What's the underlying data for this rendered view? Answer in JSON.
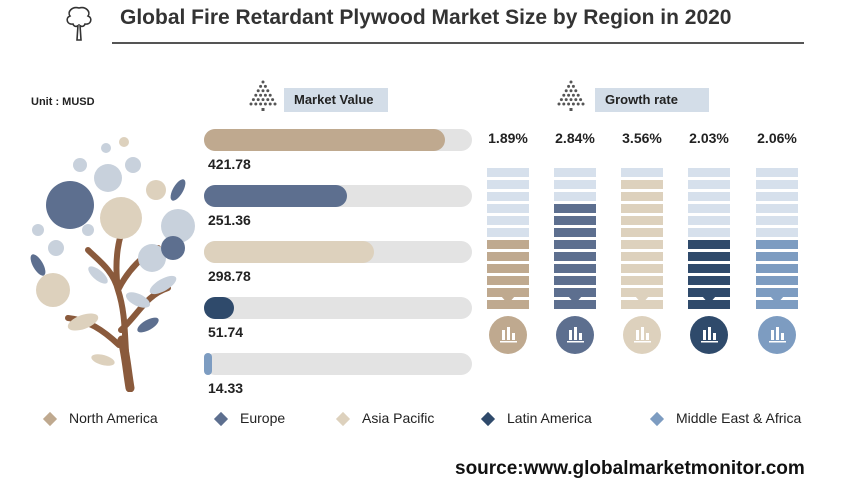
{
  "title": "Global Fire Retardant Plywood Market Size by Region in 2020",
  "unit_label": "Unit : MUSD",
  "market_value_label": "Market Value",
  "growth_rate_label": "Growth rate",
  "source": "source:www.globalmarketmonitor.com",
  "icons": {
    "logo": "tree-icon",
    "market_value": "pyramid-icon",
    "growth_rate": "pyramid-icon",
    "bar_chart": "bar-chart-icon",
    "decor": "tree-illustration"
  },
  "colors": {
    "North America": "#bfa98f",
    "Europe": "#5d6f8f",
    "Asia Pacific": "#ddd1bd",
    "Latin America": "#2f4a6b",
    "Middle East & Africa": "#7d9cc1",
    "track": "#e3e3e3",
    "segment_empty": "#d6e0ec",
    "chip_bg": "#d3dde8"
  },
  "chart_data": [
    {
      "type": "bar",
      "title": "Market Value",
      "categories": [
        "North America",
        "Europe",
        "Asia Pacific",
        "Latin America",
        "Middle East & Africa"
      ],
      "values": [
        421.78,
        251.36,
        298.78,
        51.74,
        14.33
      ],
      "value_labels": [
        "421.78",
        "251.36",
        "298.78",
        "51.74",
        "14.33"
      ],
      "xlim": [
        0,
        470
      ]
    },
    {
      "type": "bar",
      "title": "Growth rate",
      "categories": [
        "North America",
        "Europe",
        "Asia Pacific",
        "Latin America",
        "Middle East & Africa"
      ],
      "values": [
        1.89,
        2.84,
        3.56,
        2.03,
        2.06
      ],
      "value_labels": [
        "1.89%",
        "2.84%",
        "3.56%",
        "2.03%",
        "2.06%"
      ],
      "segments_total": 12
    }
  ],
  "legend": [
    {
      "label": "North America"
    },
    {
      "label": "Europe"
    },
    {
      "label": "Asia Pacific"
    },
    {
      "label": "Latin America"
    },
    {
      "label": "Middle East & Africa"
    }
  ]
}
